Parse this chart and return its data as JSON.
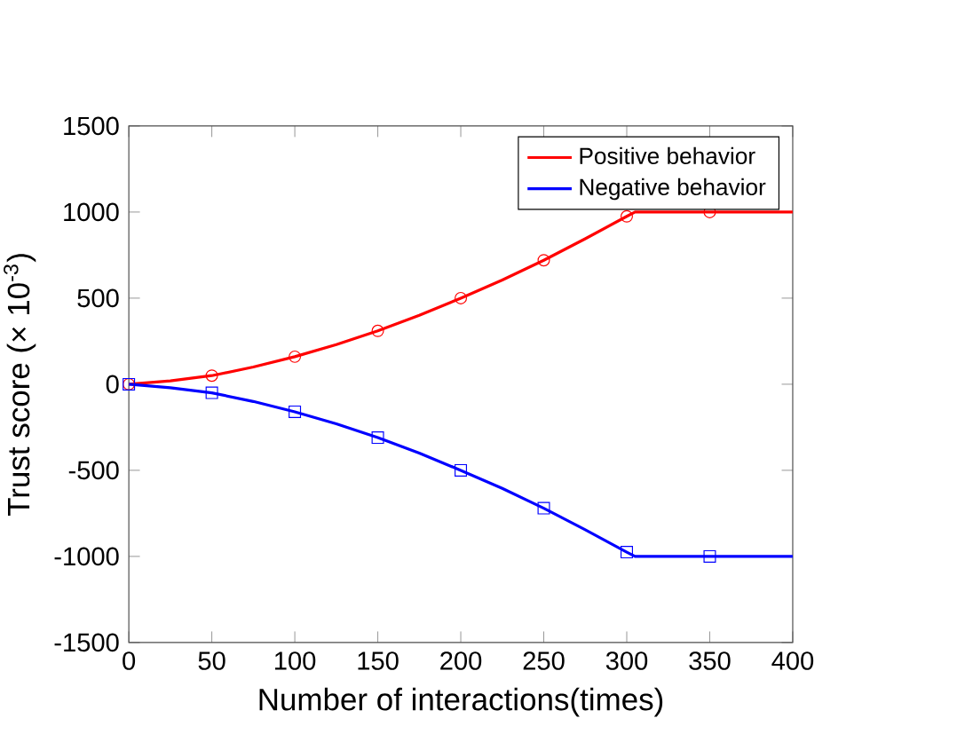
{
  "chart_data": {
    "type": "line",
    "xlabel": "Number of interactions(times)",
    "ylabel": "Trust score (× 10$^{-3}$)",
    "xlim": [
      0,
      400
    ],
    "ylim": [
      -1500,
      1500
    ],
    "xticks": [
      0,
      50,
      100,
      150,
      200,
      250,
      300,
      350,
      400
    ],
    "yticks": [
      -1500,
      -1000,
      -500,
      0,
      500,
      1000,
      1500
    ],
    "legend": "top right",
    "grid": false,
    "series": [
      {
        "name": "Positive  behavior",
        "color": "#ff0000",
        "marker": "none",
        "x": [
          0,
          25,
          50,
          75,
          100,
          125,
          150,
          175,
          200,
          225,
          250,
          275,
          300,
          305,
          400
        ],
        "values": [
          0,
          20,
          50,
          100,
          160,
          230,
          310,
          400,
          500,
          605,
          720,
          845,
          975,
          1000,
          1000
        ]
      },
      {
        "name": "Negative behavior",
        "color": "#0000ff",
        "marker": "none",
        "x": [
          0,
          25,
          50,
          75,
          100,
          125,
          150,
          175,
          200,
          225,
          250,
          275,
          300,
          305,
          400
        ],
        "values": [
          0,
          -20,
          -50,
          -100,
          -160,
          -230,
          -310,
          -400,
          -500,
          -605,
          -720,
          -845,
          -975,
          -1000,
          -1000
        ]
      },
      {
        "type": "scatter",
        "color": "#ff0000",
        "marker": "circle",
        "x": [
          0,
          50,
          100,
          150,
          200,
          250,
          300,
          350
        ],
        "values": [
          0,
          50,
          160,
          310,
          500,
          720,
          975,
          1000
        ]
      },
      {
        "type": "scatter",
        "color": "#0000ff",
        "marker": "square",
        "x": [
          0,
          50,
          100,
          150,
          200,
          250,
          300,
          350
        ],
        "values": [
          0,
          -50,
          -160,
          -310,
          -500,
          -720,
          -975,
          -1000
        ]
      }
    ]
  }
}
